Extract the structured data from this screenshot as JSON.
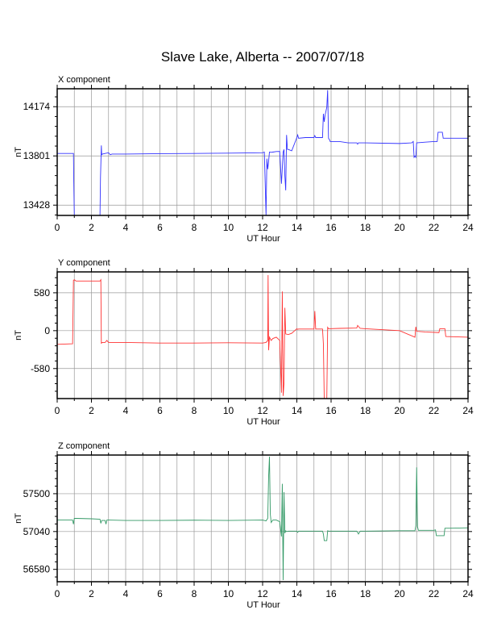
{
  "title": "Slave Lake, Alberta -- 2007/07/18",
  "chart_data": [
    {
      "type": "line",
      "title": "X component",
      "xlabel": "UT Hour",
      "ylabel": "nT",
      "xlim": [
        0,
        24
      ],
      "ylim": [
        13350,
        14310
      ],
      "xticks": [
        0,
        2,
        4,
        6,
        8,
        10,
        12,
        14,
        16,
        18,
        20,
        22,
        24
      ],
      "yticks": [
        13428,
        13801,
        14174
      ],
      "grid": true,
      "color": "#3333ff",
      "series": [
        {
          "x": [
            0,
            0.95,
            0.97,
            1.0,
            1.05,
            1.1,
            1.2,
            2.3,
            2.5,
            2.53,
            2.58,
            2.6,
            2.65,
            2.8,
            3.0,
            3.1,
            3.2,
            4.0,
            6.0,
            8.0,
            10.0,
            12.0,
            12.1,
            12.15,
            12.2,
            12.25,
            12.3,
            12.35,
            12.4,
            12.5,
            12.6,
            12.8,
            13.0,
            13.1,
            13.2,
            13.25,
            13.3,
            13.35,
            13.4,
            13.45,
            13.5,
            13.7,
            14.0,
            14.05,
            14.1,
            14.5,
            15.0,
            15.05,
            15.1,
            15.5,
            15.55,
            15.6,
            15.65,
            15.75,
            15.8,
            15.85,
            15.9,
            15.95,
            16.5,
            17.0,
            17.5,
            17.55,
            17.6,
            18.0,
            20.0,
            20.7,
            20.8,
            20.85,
            20.9,
            20.95,
            21.0,
            21.5,
            22.0,
            22.2,
            22.25,
            22.5,
            22.55,
            23.0,
            24.0
          ],
          "y": [
            13820,
            13820,
            13600,
            13340,
            13320,
            13330,
            13315,
            13315,
            13315,
            13640,
            13880,
            13810,
            13815,
            13820,
            13825,
            13810,
            13815,
            13815,
            13818,
            13820,
            13822,
            13825,
            13830,
            13600,
            13350,
            13780,
            13700,
            13760,
            13830,
            13828,
            13830,
            13834,
            13835,
            13590,
            13830,
            13850,
            13650,
            13540,
            13960,
            13850,
            13850,
            13840,
            13940,
            13960,
            13935,
            13940,
            13940,
            13955,
            13940,
            13940,
            14120,
            14060,
            14110,
            14170,
            14300,
            13935,
            13925,
            13910,
            13910,
            13900,
            13900,
            13890,
            13900,
            13900,
            13895,
            13900,
            13910,
            13790,
            13800,
            13790,
            13900,
            13905,
            13910,
            13910,
            13980,
            13980,
            13935,
            13935,
            13935
          ]
        }
      ]
    },
    {
      "type": "line",
      "title": "Y component",
      "xlabel": "UT Hour",
      "ylabel": "nT",
      "xlim": [
        0,
        24
      ],
      "ylim": [
        -1040,
        900
      ],
      "xticks": [
        0,
        2,
        4,
        6,
        8,
        10,
        12,
        14,
        16,
        18,
        20,
        22,
        24
      ],
      "yticks": [
        -580,
        0,
        580
      ],
      "grid": true,
      "color": "#ff3333",
      "series": [
        {
          "x": [
            0,
            0.9,
            0.95,
            1.0,
            1.1,
            2.5,
            2.55,
            2.58,
            2.6,
            2.65,
            2.8,
            2.9,
            3.0,
            4.0,
            6.0,
            8.0,
            10.0,
            12.0,
            12.2,
            12.3,
            12.32,
            12.35,
            12.4,
            12.5,
            12.6,
            12.8,
            13.0,
            13.1,
            13.15,
            13.2,
            13.25,
            13.3,
            13.35,
            13.5,
            13.7,
            14.0,
            14.05,
            14.1,
            15.0,
            15.05,
            15.1,
            15.5,
            15.55,
            15.6,
            15.75,
            15.8,
            15.85,
            16.5,
            17.5,
            17.55,
            17.7,
            18.0,
            20.0,
            20.9,
            20.95,
            21.0,
            21.5,
            22.3,
            22.35,
            22.65,
            22.7,
            24.0
          ],
          "y": [
            -210,
            -200,
            770,
            780,
            760,
            760,
            780,
            -200,
            -180,
            -180,
            -180,
            -150,
            -180,
            -180,
            -190,
            -190,
            -185,
            -190,
            -180,
            -150,
            850,
            -300,
            -100,
            -150,
            -120,
            -100,
            -150,
            -950,
            600,
            -1000,
            -800,
            350,
            -50,
            -60,
            -40,
            30,
            20,
            25,
            25,
            300,
            25,
            25,
            -200,
            -1040,
            -1040,
            50,
            30,
            35,
            40,
            80,
            35,
            30,
            0,
            -100,
            60,
            -10,
            -20,
            -30,
            30,
            30,
            -90,
            -100
          ]
        }
      ]
    },
    {
      "type": "line",
      "title": "Z component",
      "xlabel": "UT Hour",
      "ylabel": "nT",
      "xlim": [
        0,
        24
      ],
      "ylim": [
        56430,
        57970
      ],
      "xticks": [
        0,
        2,
        4,
        6,
        8,
        10,
        12,
        14,
        16,
        18,
        20,
        22,
        24
      ],
      "yticks": [
        56580,
        57040,
        57500
      ],
      "grid": true,
      "color": "#339966",
      "series": [
        {
          "x": [
            0,
            0.9,
            0.95,
            1.0,
            1.05,
            1.1,
            2.0,
            2.5,
            2.55,
            2.6,
            2.8,
            2.85,
            2.9,
            3.0,
            4.0,
            6.0,
            8.0,
            10.0,
            12.0,
            12.2,
            12.3,
            12.35,
            12.4,
            12.45,
            12.5,
            12.6,
            12.8,
            13.0,
            13.1,
            13.15,
            13.2,
            13.25,
            13.3,
            13.35,
            13.4,
            13.5,
            14.0,
            14.05,
            14.1,
            15.0,
            15.5,
            15.55,
            15.6,
            15.75,
            15.8,
            15.85,
            16.5,
            17.0,
            17.5,
            17.6,
            17.7,
            18.0,
            20.0,
            20.9,
            20.95,
            21.0,
            21.05,
            21.1,
            21.5,
            22.0,
            22.1,
            22.15,
            22.6,
            22.65,
            23.0,
            24.0
          ],
          "y": [
            57180,
            57180,
            57130,
            57200,
            57200,
            57200,
            57195,
            57190,
            57140,
            57175,
            57175,
            57130,
            57180,
            57180,
            57175,
            57175,
            57178,
            57175,
            57180,
            57170,
            57200,
            57700,
            57950,
            57250,
            57150,
            57180,
            57180,
            57160,
            56980,
            57620,
            56450,
            57520,
            57020,
            57050,
            57040,
            57045,
            57045,
            57030,
            57045,
            57045,
            57045,
            57010,
            56930,
            56930,
            57050,
            57045,
            57045,
            57045,
            57045,
            57010,
            57045,
            57045,
            57050,
            57050,
            57110,
            57820,
            57100,
            57055,
            57055,
            57055,
            57060,
            56990,
            56990,
            57080,
            57080,
            57085
          ]
        }
      ]
    }
  ]
}
